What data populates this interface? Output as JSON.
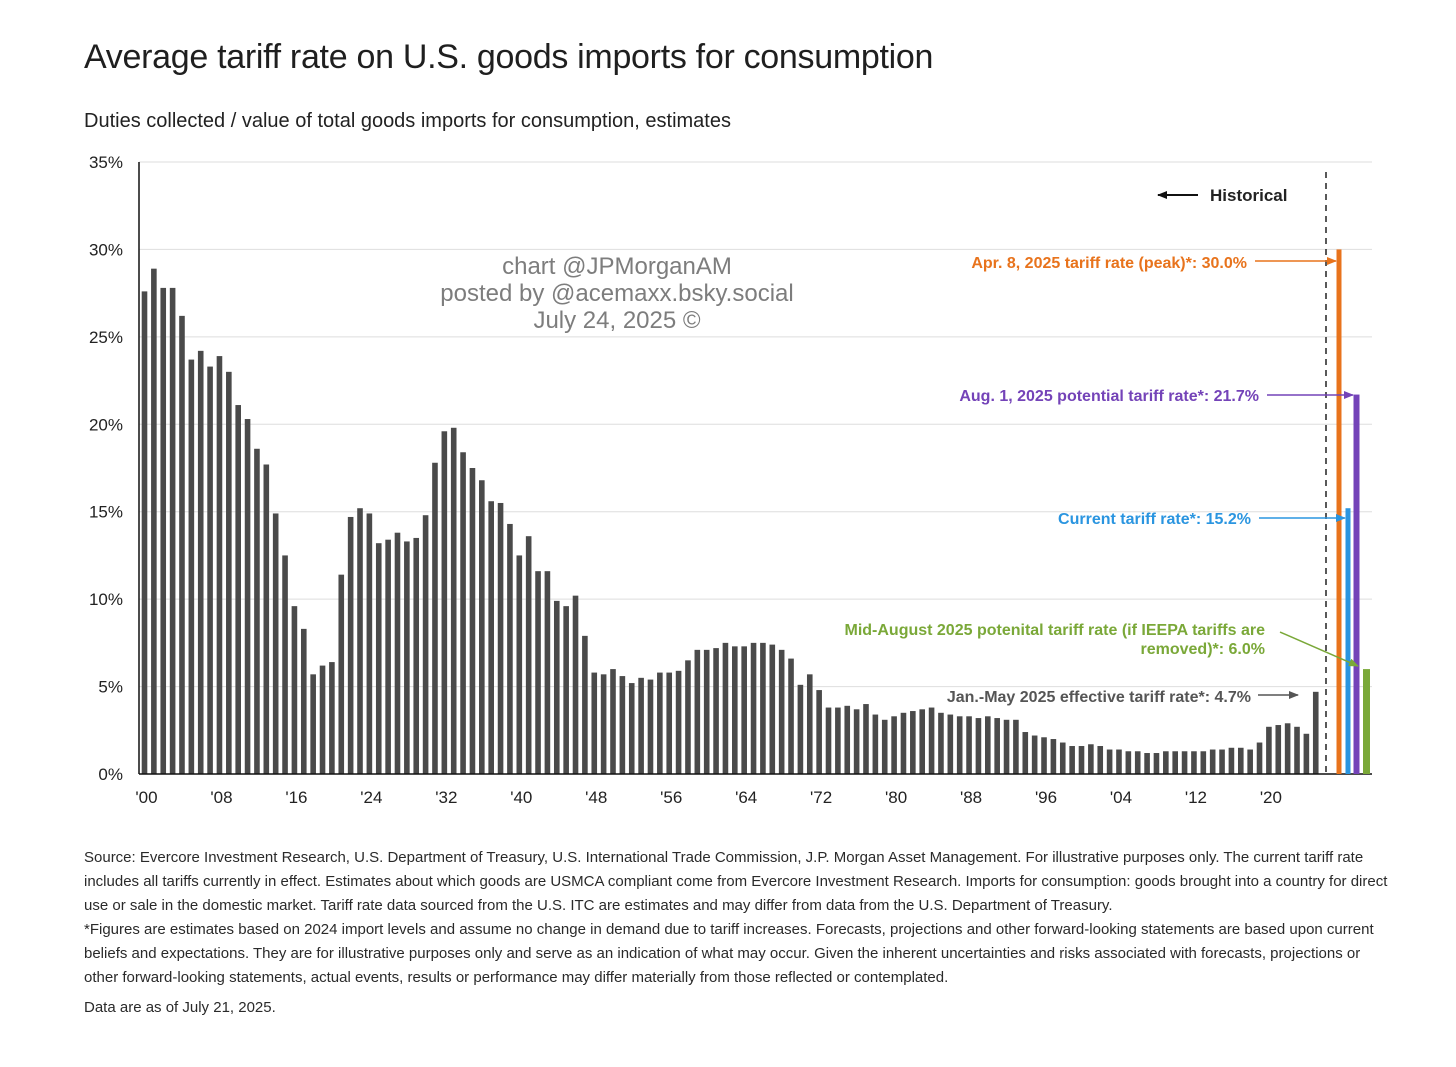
{
  "chart_data": {
    "type": "bar",
    "title": "Average tariff rate on U.S. goods imports for consumption",
    "subtitle": "Duties collected / value of total goods imports for consumption, estimates",
    "ylim": [
      0,
      35
    ],
    "y_ticks": [
      0,
      5,
      10,
      15,
      20,
      25,
      30,
      35
    ],
    "y_tick_labels": [
      "0%",
      "5%",
      "10%",
      "15%",
      "20%",
      "25%",
      "30%",
      "35%"
    ],
    "x_ticks": [
      1900,
      1908,
      1916,
      1924,
      1932,
      1940,
      1948,
      1956,
      1964,
      1972,
      1980,
      1988,
      1996,
      2004,
      2012,
      2020
    ],
    "x_tick_labels": [
      "'00",
      "'08",
      "'16",
      "'24",
      "'32",
      "'40",
      "'48",
      "'56",
      "'64",
      "'72",
      "'80",
      "'88",
      "'96",
      "'04",
      "'12",
      "'20"
    ],
    "grid": "horizontal",
    "series": [
      {
        "color": "#4a4a4a",
        "x": [
          1900,
          1901,
          1902,
          1903,
          1904,
          1905,
          1906,
          1907,
          1908,
          1909,
          1910,
          1911,
          1912,
          1913,
          1914,
          1915,
          1916,
          1917,
          1918,
          1919,
          1920,
          1921,
          1922,
          1923,
          1924,
          1925,
          1926,
          1927,
          1928,
          1929,
          1930,
          1931,
          1932,
          1933,
          1934,
          1935,
          1936,
          1937,
          1938,
          1939,
          1940,
          1941,
          1942,
          1943,
          1944,
          1945,
          1946,
          1947,
          1948,
          1949,
          1950,
          1951,
          1952,
          1953,
          1954,
          1955,
          1956,
          1957,
          1958,
          1959,
          1960,
          1961,
          1962,
          1963,
          1964,
          1965,
          1966,
          1967,
          1968,
          1969,
          1970,
          1971,
          1972,
          1973,
          1974,
          1975,
          1976,
          1977,
          1978,
          1979,
          1980,
          1981,
          1982,
          1983,
          1984,
          1985,
          1986,
          1987,
          1988,
          1989,
          1990,
          1991,
          1992,
          1993,
          1994,
          1995,
          1996,
          1997,
          1998,
          1999,
          2000,
          2001,
          2002,
          2003,
          2004,
          2005,
          2006,
          2007,
          2008,
          2009,
          2010,
          2011,
          2012,
          2013,
          2014,
          2015,
          2016,
          2017,
          2018,
          2019,
          2020,
          2021,
          2022,
          2023,
          2024,
          2025
        ],
        "values": [
          27.6,
          28.9,
          27.8,
          27.8,
          26.2,
          23.7,
          24.2,
          23.3,
          23.9,
          23.0,
          21.1,
          20.3,
          18.6,
          17.7,
          14.9,
          12.5,
          9.6,
          8.3,
          5.7,
          6.2,
          6.4,
          11.4,
          14.7,
          15.2,
          14.9,
          13.2,
          13.4,
          13.8,
          13.3,
          13.5,
          14.8,
          17.8,
          19.6,
          19.8,
          18.4,
          17.5,
          16.8,
          15.6,
          15.5,
          14.3,
          12.5,
          13.6,
          11.6,
          11.6,
          9.9,
          9.6,
          10.2,
          7.9,
          5.8,
          5.7,
          6.0,
          5.6,
          5.2,
          5.5,
          5.4,
          5.8,
          5.8,
          5.9,
          6.5,
          7.1,
          7.1,
          7.2,
          7.5,
          7.3,
          7.3,
          7.5,
          7.5,
          7.4,
          7.1,
          6.6,
          5.1,
          5.7,
          4.8,
          3.8,
          3.8,
          3.9,
          3.7,
          4.0,
          3.4,
          3.1,
          3.3,
          3.5,
          3.6,
          3.7,
          3.8,
          3.5,
          3.4,
          3.3,
          3.3,
          3.2,
          3.3,
          3.2,
          3.1,
          3.1,
          2.4,
          2.2,
          2.1,
          2.0,
          1.8,
          1.6,
          1.6,
          1.7,
          1.6,
          1.4,
          1.4,
          1.3,
          1.3,
          1.2,
          1.2,
          1.3,
          1.3,
          1.3,
          1.3,
          1.3,
          1.4,
          1.4,
          1.5,
          1.5,
          1.4,
          1.8,
          2.7,
          2.8,
          2.9,
          2.7,
          2.3,
          4.7
        ]
      }
    ],
    "divider_label": "Historical",
    "scenario_bars": [
      {
        "label": "Apr. 8, 2025 tariff rate (peak)*: 30.0%",
        "value": 30.0,
        "color": "#e8731c"
      },
      {
        "label": "Current tariff rate*: 15.2%",
        "value": 15.2,
        "color": "#2a95e0"
      },
      {
        "label": "Aug. 1, 2025 potential tariff rate*: 21.7%",
        "value": 21.7,
        "color": "#7443b8"
      },
      {
        "label_lines": [
          "Mid-August 2025 potenital tariff rate (if IEEPA tariffs are",
          "removed)*: 6.0%"
        ],
        "value": 6.0,
        "color": "#7aa838"
      }
    ],
    "effective_label": "Jan.-May 2025 effective tariff rate*: 4.7%",
    "colors": {
      "historical_bar": "#4a4a4a",
      "grid": "#dedede",
      "axis": "#111111",
      "effective_label": "#555555"
    }
  },
  "watermark": {
    "line1": "chart @JPMorganAM",
    "line2": "posted by @acemaxx.bsky.social",
    "line3": "July 24, 2025 ©"
  },
  "footnote": {
    "source": "Source: Evercore Investment Research, U.S. Department of Treasury, U.S. International Trade Commission, J.P. Morgan Asset Management. For illustrative purposes only. The current tariff rate includes all tariffs currently in effect. Estimates about which goods are USMCA compliant come from Evercore Investment Research. Imports for consumption: goods brought into a country for direct use or sale in the domestic market. Tariff rate data sourced from the U.S. ITC are estimates and may differ from data from the U.S. Department of Treasury.",
    "disclaimer": "*Figures are estimates based on 2024 import levels and assume no change in demand due to tariff increases. Forecasts, projections and other forward-looking statements are based upon current beliefs and expectations. They are for illustrative purposes only and serve as an indication of what may occur. Given the inherent uncertainties and risks associated with forecasts, projections or other forward-looking statements, actual events, results or performance may differ materially from those reflected or contemplated.",
    "data_asof": "Data are as of July 21, 2025."
  }
}
